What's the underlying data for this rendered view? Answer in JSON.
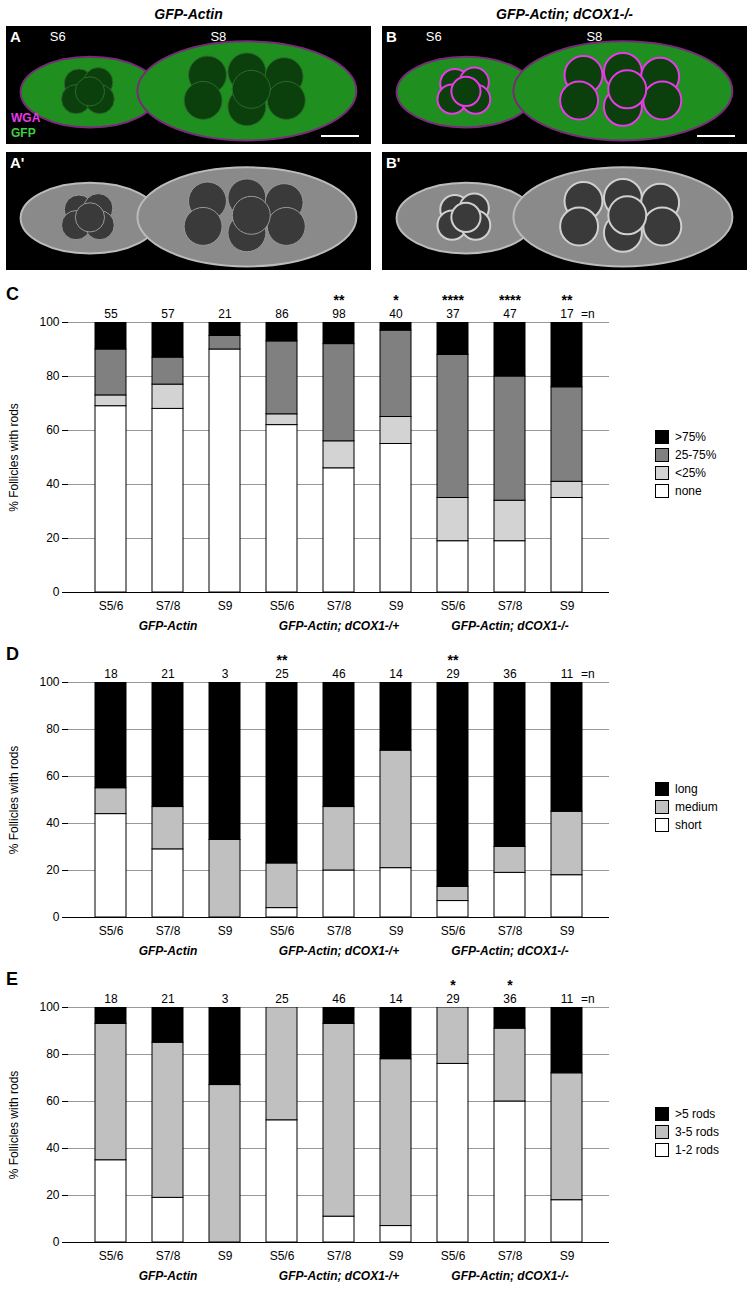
{
  "image_panels": [
    {
      "letter": "A",
      "title": "GFP-Actin",
      "stage_labels": [
        "S6",
        "S8"
      ],
      "channel_labels": [
        {
          "text": "WGA",
          "color": "#e83be8"
        },
        {
          "text": "GFP",
          "color": "#3fd13f"
        }
      ]
    },
    {
      "letter": "B",
      "title": "GFP-Actin; dCOX1-/-",
      "stage_labels": [
        "S6",
        "S8"
      ]
    },
    {
      "letter": "A'"
    },
    {
      "letter": "B'"
    }
  ],
  "chart_data": [
    {
      "type": "bar",
      "panel": "C",
      "stacked": true,
      "grid": true,
      "legend": "right",
      "ylabel": "% Follicles with rods",
      "ylim": [
        0,
        100
      ],
      "yticks": [
        0,
        20,
        40,
        60,
        80,
        100
      ],
      "categories": [
        "S5/6",
        "S7/8",
        "S9",
        "S5/6",
        "S7/8",
        "S9",
        "S5/6",
        "S7/8",
        "S9"
      ],
      "groups": [
        "GFP-Actin",
        "GFP-Actin; dCOX1-/+",
        "GFP-Actin; dCOX1-/-"
      ],
      "n": [
        55,
        57,
        21,
        86,
        98,
        40,
        37,
        47,
        17
      ],
      "n_label": "=n",
      "significance": [
        null,
        null,
        null,
        null,
        "**",
        "*",
        "****",
        "****",
        "**"
      ],
      "series": [
        {
          "name": "none",
          "color": "#ffffff",
          "values": [
            69,
            68,
            90,
            62,
            46,
            55,
            19,
            19,
            35
          ]
        },
        {
          "name": "<25%",
          "color": "#d3d3d3",
          "values": [
            4,
            9,
            0,
            4,
            10,
            10,
            16,
            15,
            6
          ]
        },
        {
          "name": "25-75%",
          "color": "#808080",
          "values": [
            17,
            10,
            5,
            27,
            36,
            32,
            53,
            46,
            35
          ]
        },
        {
          "name": ">75%",
          "color": "#000000",
          "values": [
            10,
            13,
            5,
            7,
            8,
            3,
            12,
            20,
            24
          ]
        }
      ]
    },
    {
      "type": "bar",
      "panel": "D",
      "stacked": true,
      "grid": true,
      "legend": "right",
      "ylabel": "% Follicles with rods",
      "ylim": [
        0,
        100
      ],
      "yticks": [
        0,
        20,
        40,
        60,
        80,
        100
      ],
      "categories": [
        "S5/6",
        "S7/8",
        "S9",
        "S5/6",
        "S7/8",
        "S9",
        "S5/6",
        "S7/8",
        "S9"
      ],
      "groups": [
        "GFP-Actin",
        "GFP-Actin; dCOX1-/+",
        "GFP-Actin; dCOX1-/-"
      ],
      "n": [
        18,
        21,
        3,
        25,
        46,
        14,
        29,
        36,
        11
      ],
      "n_label": "=n",
      "significance": [
        null,
        null,
        null,
        "**",
        null,
        null,
        "**",
        null,
        null
      ],
      "series": [
        {
          "name": "short",
          "color": "#ffffff",
          "values": [
            44,
            29,
            0,
            4,
            20,
            21,
            7,
            19,
            18
          ]
        },
        {
          "name": "medium",
          "color": "#c0c0c0",
          "values": [
            11,
            18,
            33,
            19,
            27,
            50,
            6,
            11,
            27
          ]
        },
        {
          "name": "long",
          "color": "#000000",
          "values": [
            45,
            53,
            67,
            77,
            53,
            29,
            87,
            70,
            55
          ]
        }
      ]
    },
    {
      "type": "bar",
      "panel": "E",
      "stacked": true,
      "grid": true,
      "legend": "right",
      "ylabel": "% Follicles with rods",
      "ylim": [
        0,
        100
      ],
      "yticks": [
        0,
        20,
        40,
        60,
        80,
        100
      ],
      "categories": [
        "S5/6",
        "S7/8",
        "S9",
        "S5/6",
        "S7/8",
        "S9",
        "S5/6",
        "S7/8",
        "S9"
      ],
      "groups": [
        "GFP-Actin",
        "GFP-Actin; dCOX1-/+",
        "GFP-Actin; dCOX1-/-"
      ],
      "n": [
        18,
        21,
        3,
        25,
        46,
        14,
        29,
        36,
        11
      ],
      "n_label": "=n",
      "significance": [
        null,
        null,
        null,
        null,
        null,
        null,
        "*",
        "*",
        null
      ],
      "series": [
        {
          "name": "1-2 rods",
          "color": "#ffffff",
          "values": [
            35,
            19,
            0,
            52,
            11,
            7,
            76,
            60,
            18
          ]
        },
        {
          "name": "3-5 rods",
          "color": "#c0c0c0",
          "values": [
            58,
            66,
            67,
            48,
            82,
            71,
            24,
            31,
            54
          ]
        },
        {
          "name": ">5 rods",
          "color": "#000000",
          "values": [
            7,
            15,
            33,
            0,
            7,
            22,
            0,
            9,
            28
          ]
        }
      ]
    }
  ]
}
